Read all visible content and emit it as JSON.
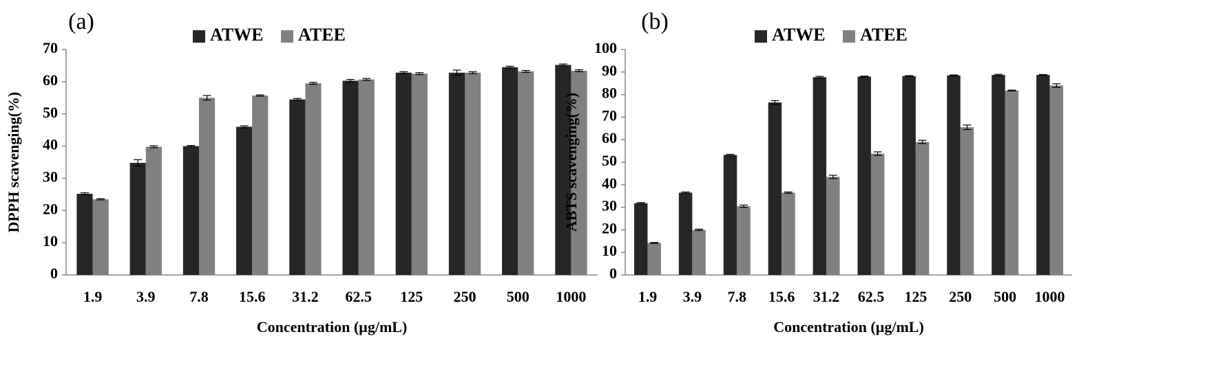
{
  "colors": {
    "ATWE": "#262626",
    "ATEE": "#808080",
    "axis": "#868686",
    "errorbar": "#000000"
  },
  "chart_data": [
    {
      "type": "bar",
      "panel_label": "(a)",
      "categories": [
        "1.9",
        "3.9",
        "7.8",
        "15.6",
        "31.2",
        "62.5",
        "125",
        "250",
        "500",
        "1000"
      ],
      "series": [
        {
          "name": "ATWE",
          "values": [
            25.2,
            34.8,
            40.0,
            46.0,
            54.5,
            60.3,
            62.8,
            62.8,
            64.5,
            65.2
          ],
          "errors": [
            0.3,
            1.0,
            0.2,
            0.3,
            0.3,
            0.4,
            0.3,
            0.8,
            0.3,
            0.3
          ]
        },
        {
          "name": "ATEE",
          "values": [
            23.5,
            39.8,
            55.0,
            55.7,
            59.5,
            60.7,
            62.5,
            62.8,
            63.2,
            63.4
          ],
          "errors": [
            0.2,
            0.3,
            0.7,
            0.2,
            0.3,
            0.3,
            0.3,
            0.3,
            0.3,
            0.3
          ]
        }
      ],
      "title": "",
      "xlabel": "Concentration (µg/mL)",
      "ylabel": "DPPH scavenging(%)",
      "ylim": [
        0,
        70
      ],
      "yticks": [
        0,
        10,
        20,
        30,
        40,
        50,
        60,
        70
      ],
      "grid": false,
      "legend_position": "top-center"
    },
    {
      "type": "bar",
      "panel_label": "(b)",
      "categories": [
        "1.9",
        "3.9",
        "7.8",
        "15.6",
        "31.2",
        "62.5",
        "125",
        "250",
        "500",
        "1000"
      ],
      "series": [
        {
          "name": "ATWE",
          "values": [
            31.8,
            36.5,
            53.2,
            76.5,
            87.7,
            88.0,
            88.2,
            88.5,
            88.7,
            88.7
          ],
          "errors": [
            0.3,
            0.3,
            0.3,
            0.8,
            0.4,
            0.2,
            0.2,
            0.2,
            0.3,
            0.2
          ]
        },
        {
          "name": "ATEE",
          "values": [
            14.2,
            20.0,
            30.5,
            36.5,
            43.5,
            53.8,
            59.0,
            65.5,
            81.8,
            84.0
          ],
          "errors": [
            0.2,
            0.3,
            0.5,
            0.3,
            0.7,
            0.8,
            0.7,
            1.0,
            0.2,
            0.8
          ]
        }
      ],
      "title": "",
      "xlabel": "Concentration (µg/mL)",
      "ylabel": "ABTS scavenging(%)",
      "ylim": [
        0,
        100
      ],
      "yticks": [
        0,
        10,
        20,
        30,
        40,
        50,
        60,
        70,
        80,
        90,
        100
      ],
      "grid": false,
      "legend_position": "top-center"
    }
  ]
}
